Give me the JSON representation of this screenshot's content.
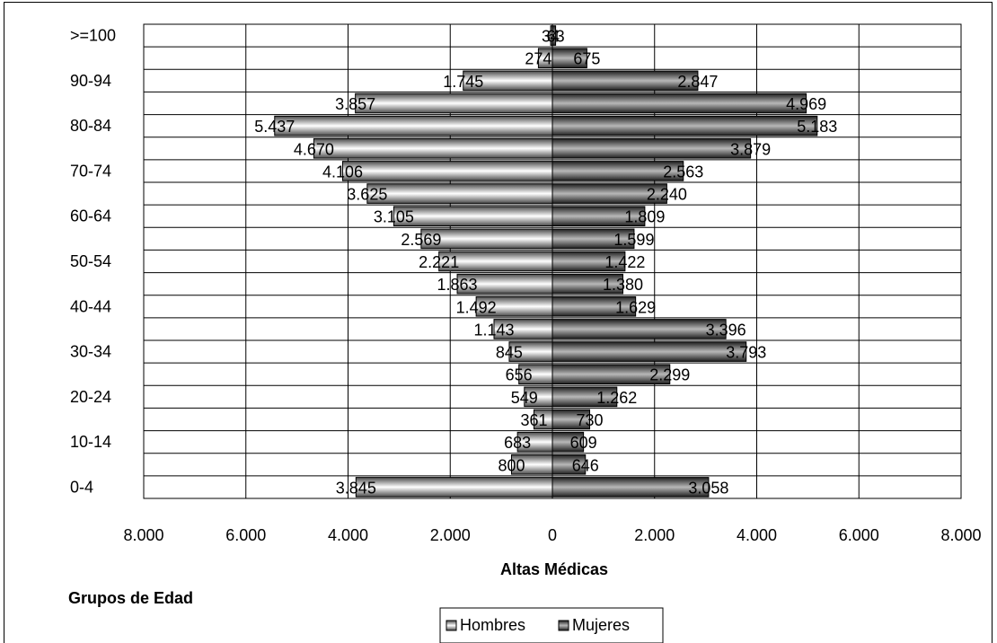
{
  "chart_data": {
    "type": "bar",
    "orientation": "horizontal",
    "title": "",
    "xlabel": "Altas Médicas",
    "ylabel": "Grupos de Edad",
    "xlim": [
      -8000,
      8000
    ],
    "x_tick_values": [
      -8000,
      -6000,
      -4000,
      -2000,
      0,
      2000,
      4000,
      6000,
      8000
    ],
    "x_tick_labels": [
      "8.000",
      "6.000",
      "4.000",
      "2.000",
      "0",
      "2.000",
      "4.000",
      "6.000",
      "8.000"
    ],
    "categories": [
      ">=100",
      "95-99",
      "90-94",
      "85-89",
      "80-84",
      "75-79",
      "70-74",
      "65-69",
      "60-64",
      "55-59",
      "50-54",
      "45-49",
      "40-44",
      "35-39",
      "30-34",
      "25-29",
      "20-24",
      "15-19",
      "10-14",
      "5-9",
      "0-4"
    ],
    "shown_category_labels": [
      ">=100",
      "",
      "90-94",
      "",
      "80-84",
      "",
      "70-74",
      "",
      "60-64",
      "",
      "50-54",
      "",
      "40-44",
      "",
      "30-34",
      "",
      "20-24",
      "",
      "10-14",
      "",
      "0-4"
    ],
    "series": [
      {
        "name": "Hombres",
        "values": [
          34,
          274,
          1745,
          3857,
          5437,
          4670,
          4106,
          3625,
          3105,
          2569,
          2221,
          1863,
          1492,
          1143,
          845,
          656,
          549,
          361,
          683,
          800,
          3845
        ],
        "labels": [
          "34",
          "274",
          "1.745",
          "3.857",
          "5.437",
          "4.670",
          "4.106",
          "3.625",
          "3.105",
          "2.569",
          "2.221",
          "1.863",
          "1.492",
          "1.143",
          "845",
          "656",
          "549",
          "361",
          "683",
          "800",
          "3.845"
        ]
      },
      {
        "name": "Mujeres",
        "values": [
          63,
          675,
          2847,
          4969,
          5183,
          3879,
          2563,
          2240,
          1809,
          1599,
          1422,
          1380,
          1629,
          3396,
          3793,
          2299,
          1262,
          730,
          609,
          646,
          3058
        ],
        "labels": [
          "63",
          "675",
          "2.847",
          "4.969",
          "5.183",
          "3.879",
          "2.563",
          "2.240",
          "1.809",
          "1.599",
          "1.422",
          "1.380",
          "1.629",
          "3.396",
          "3.793",
          "2.299",
          "1.262",
          "730",
          "609",
          "646",
          "3.058"
        ]
      }
    ],
    "grid": true,
    "legend_position": "bottom"
  }
}
